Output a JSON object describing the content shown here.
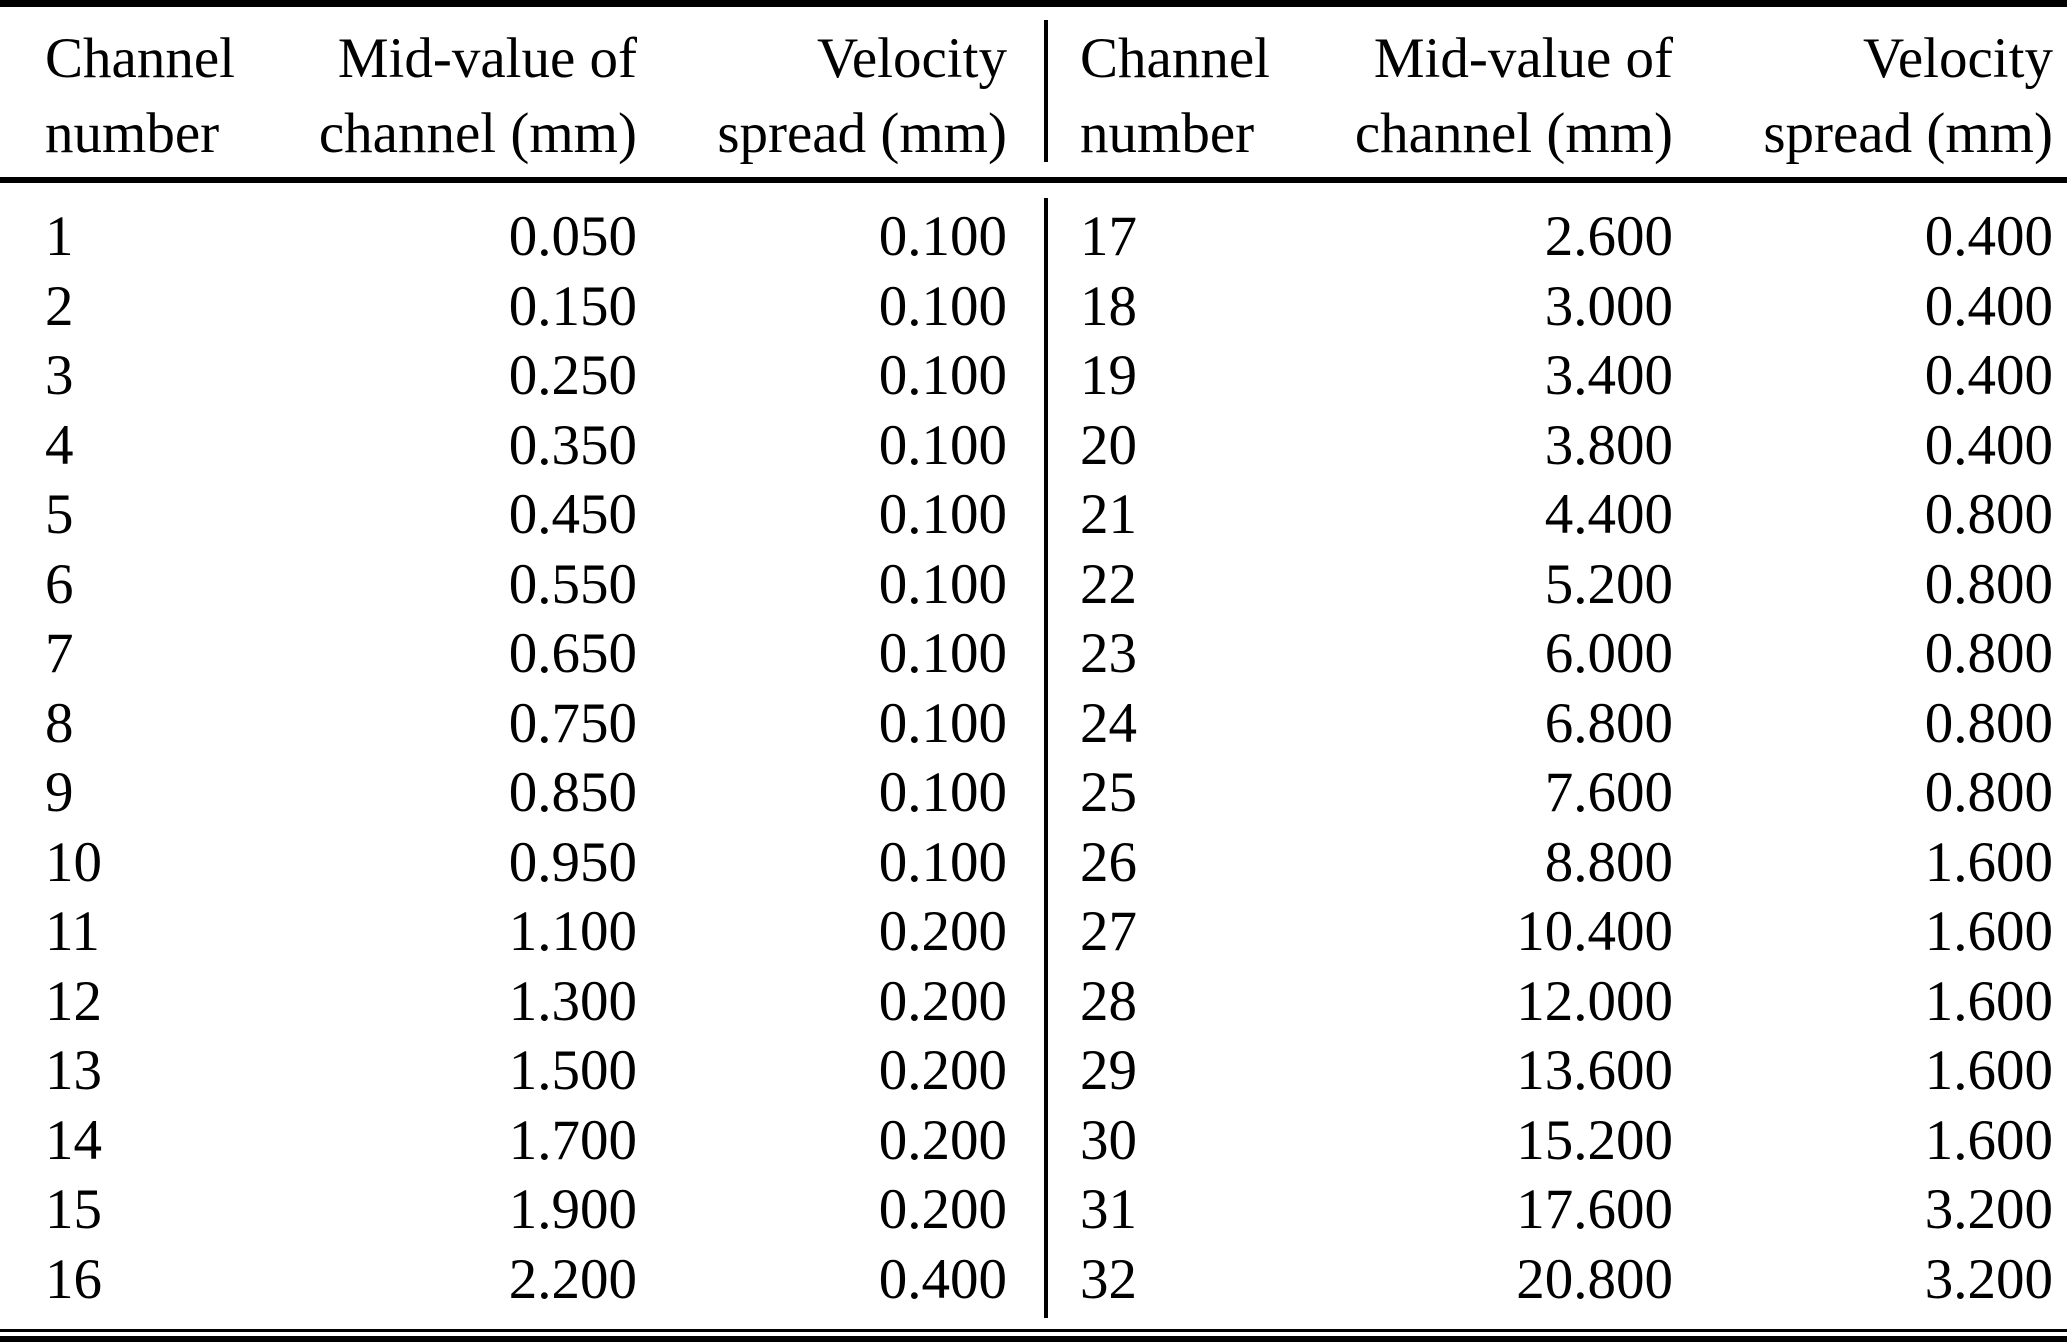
{
  "headers": [
    {
      "line1": "Channel",
      "line2": "number"
    },
    {
      "line1": "Mid-value of",
      "line2": "channel (mm)"
    },
    {
      "line1": "Velocity",
      "line2": "spread (mm)"
    }
  ],
  "rows_left": [
    {
      "channel": "1",
      "mid": "0.050",
      "spread": "0.100"
    },
    {
      "channel": "2",
      "mid": "0.150",
      "spread": "0.100"
    },
    {
      "channel": "3",
      "mid": "0.250",
      "spread": "0.100"
    },
    {
      "channel": "4",
      "mid": "0.350",
      "spread": "0.100"
    },
    {
      "channel": "5",
      "mid": "0.450",
      "spread": "0.100"
    },
    {
      "channel": "6",
      "mid": "0.550",
      "spread": "0.100"
    },
    {
      "channel": "7",
      "mid": "0.650",
      "spread": "0.100"
    },
    {
      "channel": "8",
      "mid": "0.750",
      "spread": "0.100"
    },
    {
      "channel": "9",
      "mid": "0.850",
      "spread": "0.100"
    },
    {
      "channel": "10",
      "mid": "0.950",
      "spread": "0.100"
    },
    {
      "channel": "11",
      "mid": "1.100",
      "spread": "0.200"
    },
    {
      "channel": "12",
      "mid": "1.300",
      "spread": "0.200"
    },
    {
      "channel": "13",
      "mid": "1.500",
      "spread": "0.200"
    },
    {
      "channel": "14",
      "mid": "1.700",
      "spread": "0.200"
    },
    {
      "channel": "15",
      "mid": "1.900",
      "spread": "0.200"
    },
    {
      "channel": "16",
      "mid": "2.200",
      "spread": "0.400"
    }
  ],
  "rows_right": [
    {
      "channel": "17",
      "mid": "2.600",
      "spread": "0.400"
    },
    {
      "channel": "18",
      "mid": "3.000",
      "spread": "0.400"
    },
    {
      "channel": "19",
      "mid": "3.400",
      "spread": "0.400"
    },
    {
      "channel": "20",
      "mid": "3.800",
      "spread": "0.400"
    },
    {
      "channel": "21",
      "mid": "4.400",
      "spread": "0.800"
    },
    {
      "channel": "22",
      "mid": "5.200",
      "spread": "0.800"
    },
    {
      "channel": "23",
      "mid": "6.000",
      "spread": "0.800"
    },
    {
      "channel": "24",
      "mid": "6.800",
      "spread": "0.800"
    },
    {
      "channel": "25",
      "mid": "7.600",
      "spread": "0.800"
    },
    {
      "channel": "26",
      "mid": "8.800",
      "spread": "1.600"
    },
    {
      "channel": "27",
      "mid": "10.400",
      "spread": "1.600"
    },
    {
      "channel": "28",
      "mid": "12.000",
      "spread": "1.600"
    },
    {
      "channel": "29",
      "mid": "13.600",
      "spread": "1.600"
    },
    {
      "channel": "30",
      "mid": "15.200",
      "spread": "1.600"
    },
    {
      "channel": "31",
      "mid": "17.600",
      "spread": "3.200"
    },
    {
      "channel": "32",
      "mid": "20.800",
      "spread": "3.200"
    }
  ],
  "colors": {
    "text": "#000000",
    "background": "#ffffff",
    "rule": "#000000"
  }
}
